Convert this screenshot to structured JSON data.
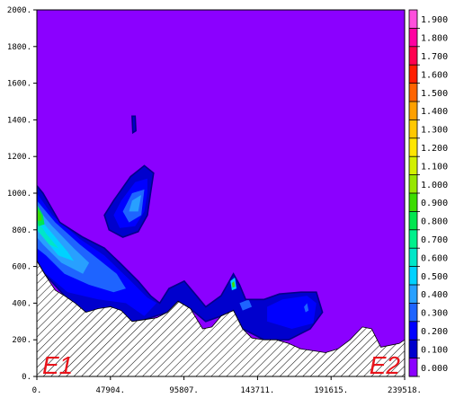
{
  "chart_data": {
    "type": "contour",
    "title": "",
    "xlabel": "",
    "ylabel": "",
    "xlim": [
      0,
      239518
    ],
    "ylim": [
      0,
      2000
    ],
    "x_tick_labels": [
      "0.",
      "47904.",
      "95807.",
      "143711.",
      "191615.",
      "239518."
    ],
    "y_tick_labels": [
      "0.",
      "200.",
      "400.",
      "600.",
      "800.",
      "1000.",
      "1200.",
      "1400.",
      "1600.",
      "1800.",
      "2000."
    ],
    "colorbar": {
      "levels": [
        "0.000",
        "0.100",
        "0.200",
        "0.300",
        "0.400",
        "0.500",
        "0.600",
        "0.700",
        "0.800",
        "0.900",
        "1.000",
        "1.100",
        "1.200",
        "1.300",
        "1.400",
        "1.500",
        "1.600",
        "1.700",
        "1.800",
        "1.900"
      ],
      "colors": [
        "#8b00ff",
        "#0000cd",
        "#0000ff",
        "#1e64ff",
        "#28a0ff",
        "#00d2ff",
        "#00e6c8",
        "#00f08c",
        "#00e650",
        "#3cdc00",
        "#96e600",
        "#d2f000",
        "#ffe600",
        "#ffc800",
        "#ffa000",
        "#ff6400",
        "#ff1e00",
        "#ff0050",
        "#ff00a0",
        "#ff50dc"
      ]
    },
    "background_value": "0.000",
    "terrain_profile": [
      [
        0,
        630
      ],
      [
        5000,
        560
      ],
      [
        12000,
        470
      ],
      [
        18000,
        440
      ],
      [
        25000,
        400
      ],
      [
        32000,
        350
      ],
      [
        40000,
        370
      ],
      [
        48000,
        380
      ],
      [
        55000,
        360
      ],
      [
        62000,
        300
      ],
      [
        70000,
        310
      ],
      [
        78000,
        320
      ],
      [
        85000,
        350
      ],
      [
        92000,
        410
      ],
      [
        100000,
        370
      ],
      [
        108000,
        260
      ],
      [
        114000,
        270
      ],
      [
        120000,
        330
      ],
      [
        128000,
        360
      ],
      [
        134000,
        260
      ],
      [
        140000,
        210
      ],
      [
        148000,
        200
      ],
      [
        156000,
        200
      ],
      [
        164000,
        180
      ],
      [
        172000,
        150
      ],
      [
        180000,
        140
      ],
      [
        188000,
        130
      ],
      [
        196000,
        150
      ],
      [
        204000,
        200
      ],
      [
        212000,
        270
      ],
      [
        218000,
        260
      ],
      [
        224000,
        160
      ],
      [
        230000,
        170
      ],
      [
        236000,
        180
      ],
      [
        239518,
        200
      ]
    ],
    "contour_regions": [
      {
        "level": "0.100",
        "points": [
          [
            0,
            1040
          ],
          [
            4000,
            1000
          ],
          [
            15000,
            840
          ],
          [
            30000,
            760
          ],
          [
            44000,
            700
          ],
          [
            54000,
            620
          ],
          [
            66000,
            520
          ],
          [
            74000,
            440
          ],
          [
            80000,
            400
          ],
          [
            86000,
            480
          ],
          [
            96000,
            520
          ],
          [
            104000,
            440
          ],
          [
            110000,
            380
          ],
          [
            120000,
            440
          ],
          [
            128000,
            560
          ],
          [
            132000,
            500
          ],
          [
            136000,
            420
          ],
          [
            148000,
            420
          ],
          [
            158000,
            450
          ],
          [
            172000,
            460
          ],
          [
            182000,
            460
          ],
          [
            186000,
            350
          ],
          [
            178000,
            260
          ],
          [
            164000,
            200
          ],
          [
            148000,
            200
          ],
          [
            134000,
            260
          ],
          [
            128000,
            360
          ],
          [
            120000,
            330
          ],
          [
            110000,
            300
          ],
          [
            100000,
            370
          ],
          [
            92000,
            410
          ],
          [
            85000,
            350
          ],
          [
            70000,
            310
          ],
          [
            62000,
            300
          ],
          [
            48000,
            380
          ],
          [
            32000,
            350
          ],
          [
            18000,
            440
          ],
          [
            5000,
            560
          ],
          [
            0,
            630
          ]
        ]
      },
      {
        "level": "0.100",
        "points": [
          [
            76000,
            1110
          ],
          [
            70000,
            1150
          ],
          [
            61000,
            1090
          ],
          [
            50000,
            960
          ],
          [
            44000,
            880
          ],
          [
            47000,
            800
          ],
          [
            56000,
            760
          ],
          [
            66000,
            790
          ],
          [
            72000,
            880
          ],
          [
            74000,
            1000
          ]
        ]
      },
      {
        "level": "0.100",
        "points": [
          [
            62000,
            1420
          ],
          [
            64000,
            1420
          ],
          [
            64500,
            1340
          ],
          [
            62500,
            1330
          ]
        ]
      },
      {
        "level": "0.200",
        "points": [
          [
            0,
            1000
          ],
          [
            10000,
            880
          ],
          [
            28000,
            750
          ],
          [
            44000,
            660
          ],
          [
            60000,
            530
          ],
          [
            72000,
            430
          ],
          [
            78000,
            400
          ],
          [
            70000,
            330
          ],
          [
            58000,
            400
          ],
          [
            40000,
            420
          ],
          [
            20000,
            460
          ],
          [
            6000,
            560
          ],
          [
            0,
            620
          ]
        ]
      },
      {
        "level": "0.200",
        "points": [
          [
            72000,
            1080
          ],
          [
            64000,
            1060
          ],
          [
            55000,
            960
          ],
          [
            50000,
            880
          ],
          [
            54000,
            810
          ],
          [
            64000,
            820
          ],
          [
            70000,
            900
          ],
          [
            72000,
            1000
          ]
        ]
      },
      {
        "level": "0.200",
        "points": [
          [
            150000,
            380
          ],
          [
            160000,
            420
          ],
          [
            176000,
            440
          ],
          [
            182000,
            400
          ],
          [
            180000,
            290
          ],
          [
            166000,
            260
          ],
          [
            150000,
            300
          ]
        ]
      },
      {
        "level": "0.300",
        "points": [
          [
            0,
            960
          ],
          [
            12000,
            840
          ],
          [
            28000,
            720
          ],
          [
            40000,
            640
          ],
          [
            52000,
            560
          ],
          [
            58000,
            480
          ],
          [
            50000,
            460
          ],
          [
            34000,
            500
          ],
          [
            18000,
            560
          ],
          [
            6000,
            660
          ],
          [
            0,
            700
          ]
        ]
      },
      {
        "level": "0.300",
        "points": [
          [
            70000,
            1020
          ],
          [
            62000,
            1000
          ],
          [
            56000,
            900
          ],
          [
            60000,
            840
          ],
          [
            68000,
            880
          ]
        ]
      },
      {
        "level": "0.300",
        "points": [
          [
            174000,
            380
          ],
          [
            176000,
            400
          ],
          [
            177000,
            360
          ],
          [
            175000,
            350
          ]
        ]
      },
      {
        "level": "0.400",
        "points": [
          [
            0,
            920
          ],
          [
            10000,
            820
          ],
          [
            24000,
            700
          ],
          [
            34000,
            620
          ],
          [
            30000,
            560
          ],
          [
            16000,
            620
          ],
          [
            4000,
            720
          ],
          [
            0,
            760
          ]
        ]
      },
      {
        "level": "0.400",
        "points": [
          [
            68000,
            990
          ],
          [
            62000,
            960
          ],
          [
            60000,
            900
          ],
          [
            66000,
            900
          ]
        ]
      },
      {
        "level": "0.500",
        "points": [
          [
            0,
            880
          ],
          [
            8000,
            800
          ],
          [
            20000,
            680
          ],
          [
            24000,
            630
          ],
          [
            14000,
            660
          ],
          [
            4000,
            760
          ],
          [
            0,
            800
          ]
        ]
      },
      {
        "level": "0.600",
        "points": [
          [
            0,
            860
          ],
          [
            6000,
            780
          ],
          [
            14000,
            700
          ],
          [
            8000,
            720
          ],
          [
            0,
            800
          ]
        ]
      },
      {
        "level": "0.800",
        "points": [
          [
            0,
            940
          ],
          [
            4000,
            880
          ],
          [
            5000,
            830
          ],
          [
            1000,
            820
          ],
          [
            0,
            860
          ]
        ]
      },
      {
        "level": "0.900",
        "points": [
          [
            0,
            920
          ],
          [
            3000,
            880
          ],
          [
            3000,
            850
          ],
          [
            0,
            850
          ]
        ]
      },
      {
        "level": "0.500",
        "points": [
          [
            126000,
            520
          ],
          [
            129000,
            540
          ],
          [
            130000,
            480
          ],
          [
            127000,
            470
          ]
        ]
      },
      {
        "level": "0.900",
        "points": [
          [
            127000,
            510
          ],
          [
            128500,
            520
          ],
          [
            129000,
            490
          ],
          [
            127500,
            485
          ]
        ]
      },
      {
        "level": "0.300",
        "points": [
          [
            132000,
            400
          ],
          [
            138000,
            420
          ],
          [
            140000,
            380
          ],
          [
            134000,
            360
          ]
        ]
      }
    ],
    "endpoint_labels": [
      "E1",
      "E2"
    ]
  }
}
